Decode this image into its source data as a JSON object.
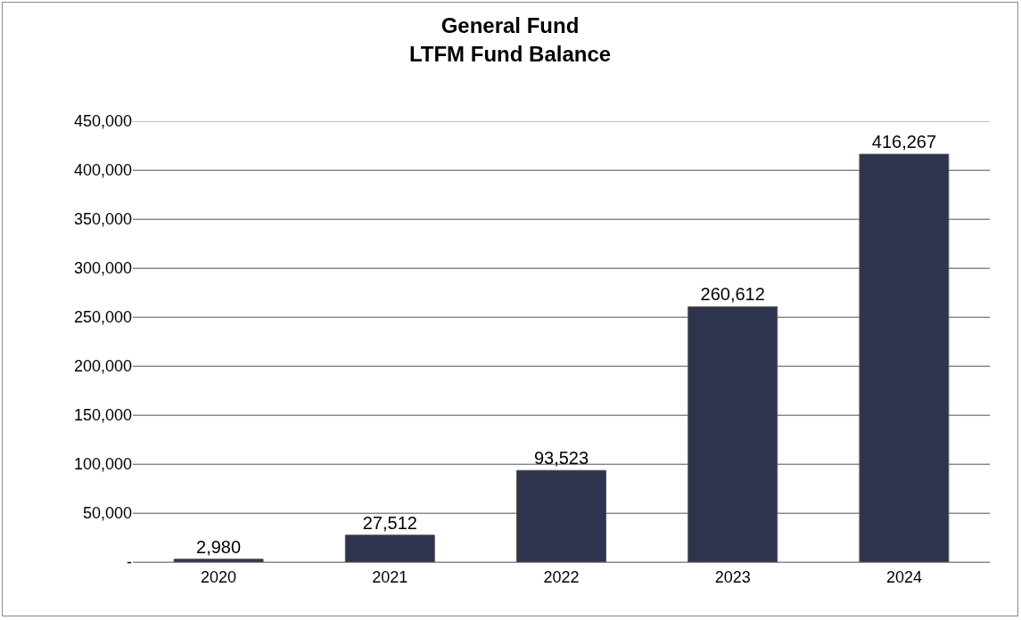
{
  "chart_data": {
    "type": "bar",
    "title": "General Fund\nLTFM Fund Balance",
    "categories": [
      "2020",
      "2021",
      "2022",
      "2023",
      "2024"
    ],
    "values": [
      2980,
      27512,
      93523,
      260612,
      416267
    ],
    "value_labels": [
      "2,980",
      "27,512",
      "93,523",
      "260,612",
      "416,267"
    ],
    "color": "#2e344d",
    "ylim": [
      0,
      450000
    ],
    "yticks": [
      {
        "value": 0,
        "label": "-"
      },
      {
        "value": 50000,
        "label": "50,000"
      },
      {
        "value": 100000,
        "label": "100,000"
      },
      {
        "value": 150000,
        "label": "150,000"
      },
      {
        "value": 200000,
        "label": "200,000"
      },
      {
        "value": 250000,
        "label": "250,000"
      },
      {
        "value": 300000,
        "label": "300,000"
      },
      {
        "value": 350000,
        "label": "350,000"
      },
      {
        "value": 400000,
        "label": "400,000"
      },
      {
        "value": 450000,
        "label": "450,000"
      }
    ],
    "grid": "y"
  }
}
